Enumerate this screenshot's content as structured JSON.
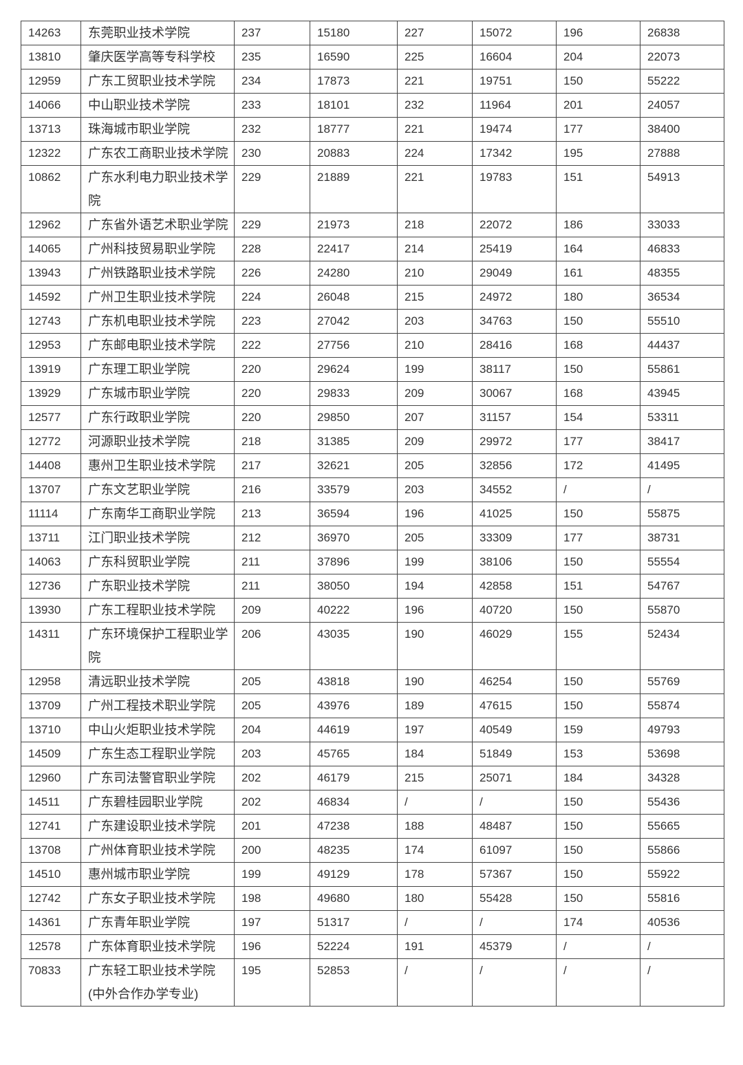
{
  "rows": [
    [
      "14263",
      "东莞职业技术学院",
      "237",
      "15180",
      "227",
      "15072",
      "196",
      "26838"
    ],
    [
      "13810",
      "肇庆医学高等专科学校",
      "235",
      "16590",
      "225",
      "16604",
      "204",
      "22073"
    ],
    [
      "12959",
      "广东工贸职业技术学院",
      "234",
      "17873",
      "221",
      "19751",
      "150",
      "55222"
    ],
    [
      "14066",
      "中山职业技术学院",
      "233",
      "18101",
      "232",
      "11964",
      "201",
      "24057"
    ],
    [
      "13713",
      "珠海城市职业学院",
      "232",
      "18777",
      "221",
      "19474",
      "177",
      "38400"
    ],
    [
      "12322",
      "广东农工商职业技术学院",
      "230",
      "20883",
      "224",
      "17342",
      "195",
      "27888"
    ],
    [
      "10862",
      "广东水利电力职业技术学院",
      "229",
      "21889",
      "221",
      "19783",
      "151",
      "54913"
    ],
    [
      "12962",
      "广东省外语艺术职业学院",
      "229",
      "21973",
      "218",
      "22072",
      "186",
      "33033"
    ],
    [
      "14065",
      "广州科技贸易职业学院",
      "228",
      "22417",
      "214",
      "25419",
      "164",
      "46833"
    ],
    [
      "13943",
      "广州铁路职业技术学院",
      "226",
      "24280",
      "210",
      "29049",
      "161",
      "48355"
    ],
    [
      "14592",
      "广州卫生职业技术学院",
      "224",
      "26048",
      "215",
      "24972",
      "180",
      "36534"
    ],
    [
      "12743",
      "广东机电职业技术学院",
      "223",
      "27042",
      "203",
      "34763",
      "150",
      "55510"
    ],
    [
      "12953",
      "广东邮电职业技术学院",
      "222",
      "27756",
      "210",
      "28416",
      "168",
      "44437"
    ],
    [
      "13919",
      "广东理工职业学院",
      "220",
      "29624",
      "199",
      "38117",
      "150",
      "55861"
    ],
    [
      "13929",
      "广东城市职业学院",
      "220",
      "29833",
      "209",
      "30067",
      "168",
      "43945"
    ],
    [
      "12577",
      "广东行政职业学院",
      "220",
      "29850",
      "207",
      "31157",
      "154",
      "53311"
    ],
    [
      "12772",
      "河源职业技术学院",
      "218",
      "31385",
      "209",
      "29972",
      "177",
      "38417"
    ],
    [
      "14408",
      "惠州卫生职业技术学院",
      "217",
      "32621",
      "205",
      "32856",
      "172",
      "41495"
    ],
    [
      "13707",
      "广东文艺职业学院",
      "216",
      "33579",
      "203",
      "34552",
      "/",
      "/"
    ],
    [
      "11114",
      "广东南华工商职业学院",
      "213",
      "36594",
      "196",
      "41025",
      "150",
      "55875"
    ],
    [
      "13711",
      "江门职业技术学院",
      "212",
      "36970",
      "205",
      "33309",
      "177",
      "38731"
    ],
    [
      "14063",
      "广东科贸职业学院",
      "211",
      "37896",
      "199",
      "38106",
      "150",
      "55554"
    ],
    [
      "12736",
      "广东职业技术学院",
      "211",
      "38050",
      "194",
      "42858",
      "151",
      "54767"
    ],
    [
      "13930",
      "广东工程职业技术学院",
      "209",
      "40222",
      "196",
      "40720",
      "150",
      "55870"
    ],
    [
      "14311",
      "广东环境保护工程职业学院",
      "206",
      "43035",
      "190",
      "46029",
      "155",
      "52434"
    ],
    [
      "12958",
      "清远职业技术学院",
      "205",
      "43818",
      "190",
      "46254",
      "150",
      "55769"
    ],
    [
      "13709",
      "广州工程技术职业学院",
      "205",
      "43976",
      "189",
      "47615",
      "150",
      "55874"
    ],
    [
      "13710",
      "中山火炬职业技术学院",
      "204",
      "44619",
      "197",
      "40549",
      "159",
      "49793"
    ],
    [
      "14509",
      "广东生态工程职业学院",
      "203",
      "45765",
      "184",
      "51849",
      "153",
      "53698"
    ],
    [
      "12960",
      "广东司法警官职业学院",
      "202",
      "46179",
      "215",
      "25071",
      "184",
      "34328"
    ],
    [
      "14511",
      "广东碧桂园职业学院",
      "202",
      "46834",
      "/",
      "/",
      "150",
      "55436"
    ],
    [
      "12741",
      "广东建设职业技术学院",
      "201",
      "47238",
      "188",
      "48487",
      "150",
      "55665"
    ],
    [
      "13708",
      "广州体育职业技术学院",
      "200",
      "48235",
      "174",
      "61097",
      "150",
      "55866"
    ],
    [
      "14510",
      "惠州城市职业学院",
      "199",
      "49129",
      "178",
      "57367",
      "150",
      "55922"
    ],
    [
      "12742",
      "广东女子职业技术学院",
      "198",
      "49680",
      "180",
      "55428",
      "150",
      "55816"
    ],
    [
      "14361",
      "广东青年职业学院",
      "197",
      "51317",
      "/",
      "/",
      "174",
      "40536"
    ],
    [
      "12578",
      "广东体育职业技术学院",
      "196",
      "52224",
      "191",
      "45379",
      "/",
      "/"
    ],
    [
      "70833",
      "广东轻工职业技术学院(中外合作办学专业)",
      "195",
      "52853",
      "/",
      "/",
      "/",
      "/"
    ]
  ]
}
